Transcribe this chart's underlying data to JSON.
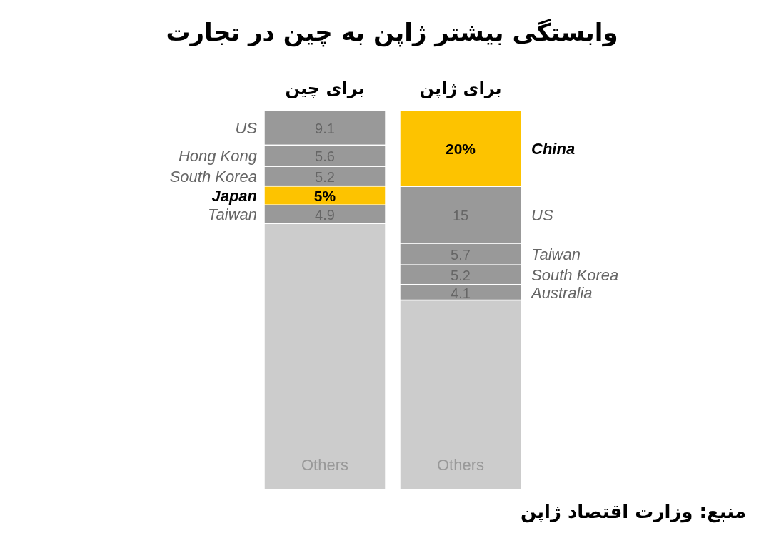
{
  "chart_data": {
    "type": "bar",
    "title": "وابستگی بیشتر ژاپن به چین در تجارت",
    "categories": [
      "برای چین",
      "برای ژاپن"
    ],
    "stacked": true,
    "series": [
      {
        "name": "Others",
        "color": "#cccccc",
        "values": [
          70.2,
          null
        ]
      },
      {
        "name": "Taiwan",
        "color": "#999999",
        "values": [
          4.9,
          null
        ],
        "value_labels": [
          "4.9",
          null
        ]
      },
      {
        "name": "Japan",
        "color": "#fdc300",
        "values": [
          5,
          null
        ],
        "value_labels": [
          "5%",
          null
        ]
      },
      {
        "name": "South Korea",
        "color": "#999999",
        "values": [
          5.2,
          null
        ],
        "value_labels": [
          "5.2",
          null
        ]
      },
      {
        "name": "Hong Kong",
        "color": "#999999",
        "values": [
          5.6,
          null
        ],
        "value_labels": [
          "5.6",
          null
        ]
      },
      {
        "name": "US",
        "color": "#999999",
        "values": [
          9.1,
          null
        ],
        "value_labels": [
          "9.1",
          null
        ]
      },
      {
        "name": "Others",
        "color": "#cccccc",
        "values": [
          null,
          50.0
        ]
      },
      {
        "name": "Australia",
        "color": "#999999",
        "values": [
          null,
          4.1
        ],
        "value_labels": [
          null,
          "4.1"
        ]
      },
      {
        "name": "South Korea",
        "color": "#999999",
        "values": [
          null,
          5.2
        ],
        "value_labels": [
          null,
          "5.2"
        ]
      },
      {
        "name": "Taiwan",
        "color": "#999999",
        "values": [
          null,
          5.7
        ],
        "value_labels": [
          null,
          "5.7"
        ]
      },
      {
        "name": "US",
        "color": "#999999",
        "values": [
          null,
          15
        ],
        "value_labels": [
          null,
          "15"
        ]
      },
      {
        "name": "China",
        "color": "#fdc300",
        "values": [
          null,
          20
        ],
        "value_labels": [
          null,
          "20%"
        ]
      }
    ],
    "annotations": [
      "منبع: وزارت اقتصاد ژاپن"
    ]
  }
}
